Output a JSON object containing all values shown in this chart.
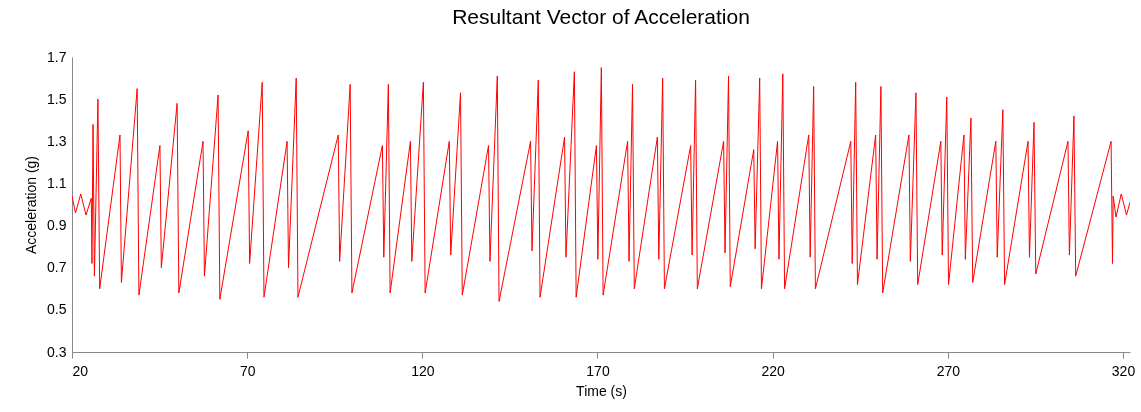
{
  "chart_data": {
    "type": "line",
    "title": "Resultant Vector of Acceleration",
    "xlabel": "Time (s)",
    "ylabel": "Acceleration (g)",
    "x": [
      20,
      21,
      22.5,
      24,
      25.5,
      25.7,
      26.0,
      26.4,
      27.4,
      27.9,
      33.7,
      34.1,
      38.6,
      39.1,
      45.1,
      45.5,
      50.0,
      50.5,
      57.4,
      57.8,
      61.7,
      62.2,
      70.3,
      70.7,
      74.3,
      74.8,
      81.4,
      81.8,
      84.0,
      84.5,
      96.0,
      96.4,
      99.4,
      99.9,
      108.6,
      109.0,
      110.3,
      110.8,
      116.6,
      117.0,
      120.3,
      120.8,
      127.7,
      128.1,
      130.9,
      131.4,
      138.9,
      139.3,
      141.4,
      141.9,
      150.9,
      151.3,
      153.1,
      153.6,
      160.6,
      161.0,
      163.4,
      163.9,
      169.7,
      170.1,
      171.1,
      171.6,
      178.6,
      179.0,
      180.0,
      180.5,
      187.1,
      187.5,
      188.6,
      189.1,
      196.6,
      197.0,
      198.0,
      198.5,
      206.0,
      206.4,
      207.4,
      207.9,
      214.6,
      215.0,
      216.3,
      216.8,
      221.4,
      221.8,
      222.9,
      223.4,
      230.3,
      230.7,
      231.7,
      232.2,
      242.3,
      242.7,
      243.7,
      244.2,
      249.4,
      249.8,
      250.9,
      251.4,
      258.9,
      259.3,
      260.9,
      261.4,
      268.0,
      268.4,
      269.7,
      270.2,
      274.6,
      275.0,
      276.6,
      277.1,
      283.7,
      284.1,
      285.7,
      286.2,
      292.9,
      293.3,
      294.6,
      295.1,
      304.3,
      304.7,
      306.0,
      306.5,
      316.6,
      317.0,
      317.2,
      318,
      319.5,
      321,
      322
    ],
    "series": [
      {
        "color": "#ff0000",
        "values": [
          1.04,
          0.96,
          1.05,
          0.95,
          1.03,
          0.72,
          1.38,
          0.66,
          1.5,
          0.6,
          1.33,
          0.63,
          1.55,
          0.57,
          1.28,
          0.7,
          1.48,
          0.58,
          1.3,
          0.66,
          1.52,
          0.55,
          1.35,
          0.72,
          1.58,
          0.56,
          1.3,
          0.7,
          1.6,
          0.56,
          1.33,
          0.73,
          1.57,
          0.58,
          1.28,
          0.75,
          1.57,
          0.58,
          1.3,
          0.73,
          1.58,
          0.58,
          1.3,
          0.76,
          1.53,
          0.57,
          1.28,
          0.73,
          1.61,
          0.54,
          1.3,
          0.78,
          1.59,
          0.56,
          1.32,
          0.75,
          1.63,
          0.56,
          1.28,
          0.74,
          1.65,
          0.57,
          1.3,
          0.73,
          1.57,
          0.6,
          1.32,
          0.74,
          1.6,
          0.6,
          1.28,
          0.76,
          1.59,
          0.6,
          1.3,
          0.77,
          1.61,
          0.61,
          1.26,
          0.79,
          1.6,
          0.6,
          1.3,
          0.74,
          1.62,
          0.6,
          1.33,
          0.75,
          1.56,
          0.6,
          1.3,
          0.72,
          1.58,
          0.62,
          1.33,
          0.74,
          1.56,
          0.58,
          1.33,
          0.73,
          1.53,
          0.62,
          1.3,
          0.76,
          1.51,
          0.62,
          1.33,
          0.74,
          1.41,
          0.63,
          1.3,
          0.75,
          1.45,
          0.62,
          1.3,
          0.75,
          1.39,
          0.67,
          1.3,
          0.76,
          1.42,
          0.66,
          1.3,
          0.72,
          1.04,
          0.94,
          1.05,
          0.95,
          1.01
        ]
      }
    ],
    "xlim": [
      20,
      322
    ],
    "xticks": [
      20,
      70,
      120,
      170,
      220,
      270,
      320
    ],
    "ylim": [
      0.3,
      1.7
    ],
    "yticks": [
      0.3,
      0.5,
      0.7,
      0.9,
      1.1,
      1.3,
      1.5,
      1.7
    ],
    "grid": false,
    "marker": "none",
    "line_style": "solid"
  }
}
